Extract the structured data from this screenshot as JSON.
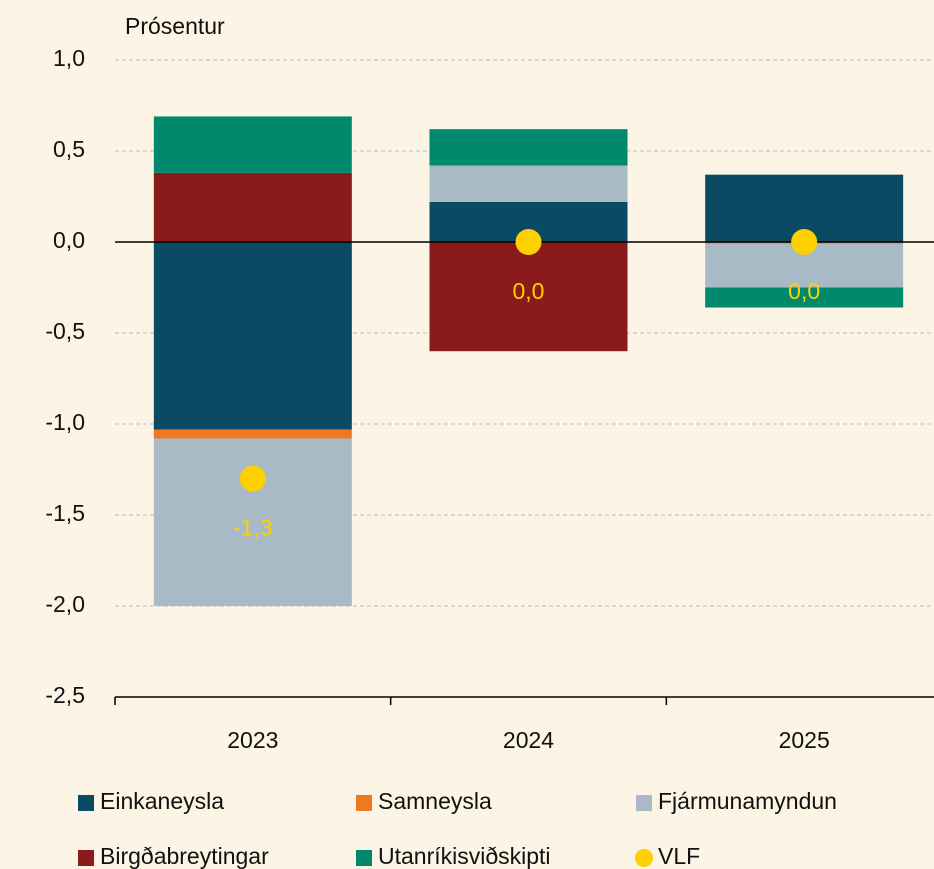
{
  "chart_data": {
    "type": "bar",
    "stacked": true,
    "ylabel": "Prósentur",
    "categories": [
      "2023",
      "2024",
      "2025"
    ],
    "series": [
      {
        "name": "Einkaneysla",
        "color": "#0b4a63",
        "values": [
          -1.03,
          0.22,
          0.37
        ]
      },
      {
        "name": "Samneysla",
        "color": "#f07822",
        "values": [
          -0.05,
          0,
          -0.01
        ]
      },
      {
        "name": "Fjármunamyndun",
        "color": "#a7bac6",
        "values": [
          -0.92,
          0.2,
          -0.24
        ]
      },
      {
        "name": "Birgðabreytingar",
        "color": "#8b1a1a",
        "values": [
          0.38,
          -0.6,
          0
        ]
      },
      {
        "name": "Utanríkisviðskipti",
        "color": "#00896c",
        "values": [
          0.31,
          0.2,
          -0.11
        ]
      }
    ],
    "points": {
      "name": "VLF",
      "color": "#ffd000",
      "values": [
        -1.3,
        0,
        0
      ],
      "value_labels": [
        "-1,3",
        "0,0",
        "0,0"
      ]
    },
    "ylim": [
      -2.5,
      1.0
    ],
    "yticks": [
      {
        "value": -2.5,
        "label": "-2,5"
      },
      {
        "value": -2,
        "label": "-2,0"
      },
      {
        "value": -1.5,
        "label": "-1,5"
      },
      {
        "value": -1,
        "label": "-1,0"
      },
      {
        "value": -0.5,
        "label": "-0,5"
      },
      {
        "value": 0,
        "label": "0,0"
      },
      {
        "value": 0.5,
        "label": "0,5"
      },
      {
        "value": 1,
        "label": "1,0"
      }
    ],
    "grid": true,
    "legend": "bottom"
  }
}
